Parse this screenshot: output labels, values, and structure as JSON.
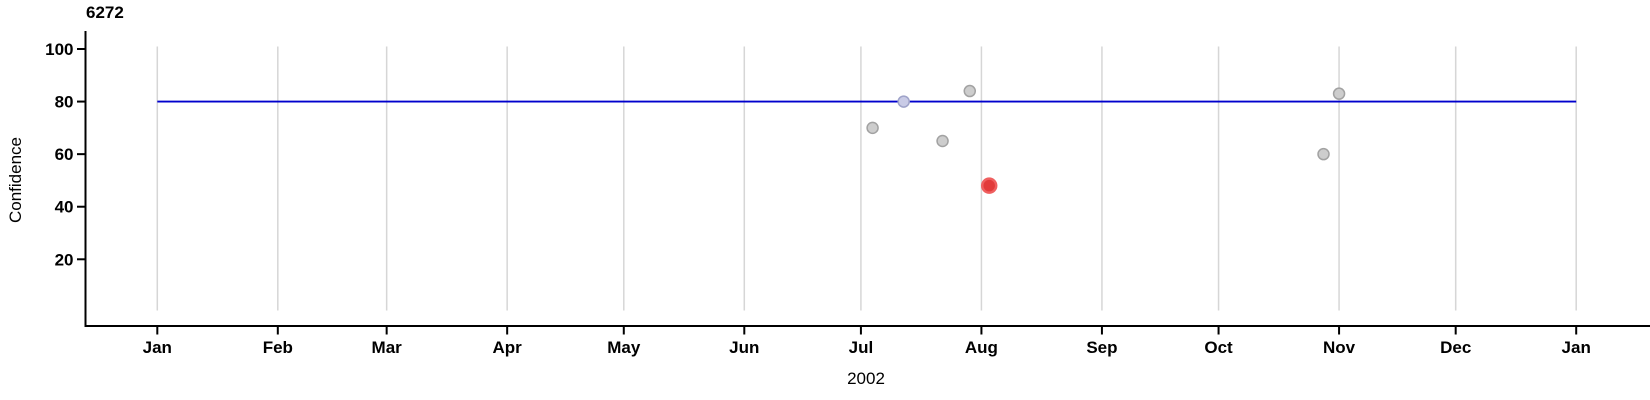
{
  "chart_data": {
    "type": "scatter",
    "title": "6272",
    "xlabel": "2002",
    "ylabel": "Confidence",
    "x_axis": {
      "tick_labels": [
        "Jan",
        "Feb",
        "Mar",
        "Apr",
        "May",
        "Jun",
        "Jul",
        "Aug",
        "Sep",
        "Oct",
        "Nov",
        "Dec",
        "Jan"
      ],
      "tick_days": [
        0,
        31,
        59,
        90,
        120,
        151,
        181,
        212,
        243,
        273,
        304,
        334,
        365
      ],
      "range_days": [
        0,
        365
      ],
      "year": "2002"
    },
    "y_axis": {
      "ticks": [
        20,
        40,
        60,
        80,
        100
      ],
      "range": [
        -5,
        107
      ]
    },
    "grid": "vertical-monthly",
    "legend": "none",
    "reference_line": {
      "value": 80,
      "color": "#0000cd"
    },
    "points": [
      {
        "date": "2002-07-04",
        "day": 184,
        "value": 70,
        "kind": "normal"
      },
      {
        "date": "2002-07-12",
        "day": 192,
        "value": 80,
        "kind": "selected"
      },
      {
        "date": "2002-07-22",
        "day": 202,
        "value": 65,
        "kind": "normal"
      },
      {
        "date": "2002-07-29",
        "day": 209,
        "value": 84,
        "kind": "normal"
      },
      {
        "date": "2002-08-03",
        "day": 214,
        "value": 48,
        "kind": "alert"
      },
      {
        "date": "2002-10-28",
        "day": 300,
        "value": 60,
        "kind": "normal"
      },
      {
        "date": "2002-11-01",
        "day": 304,
        "value": 83,
        "kind": "normal"
      }
    ],
    "point_styles": {
      "normal": {
        "fill": "#cdcdcd",
        "stroke": "#a2a2a2",
        "r": 5.5
      },
      "selected": {
        "fill": "#c9cbe6",
        "stroke": "#9fa3c9",
        "r": 5.5
      },
      "alert": {
        "fill": "#e23b3b",
        "stroke": "#ef5f5f",
        "r": 7
      }
    },
    "colors": {
      "axis": "#000000",
      "grid": "#d6d6d6",
      "reference_line": "#0000cd"
    }
  }
}
